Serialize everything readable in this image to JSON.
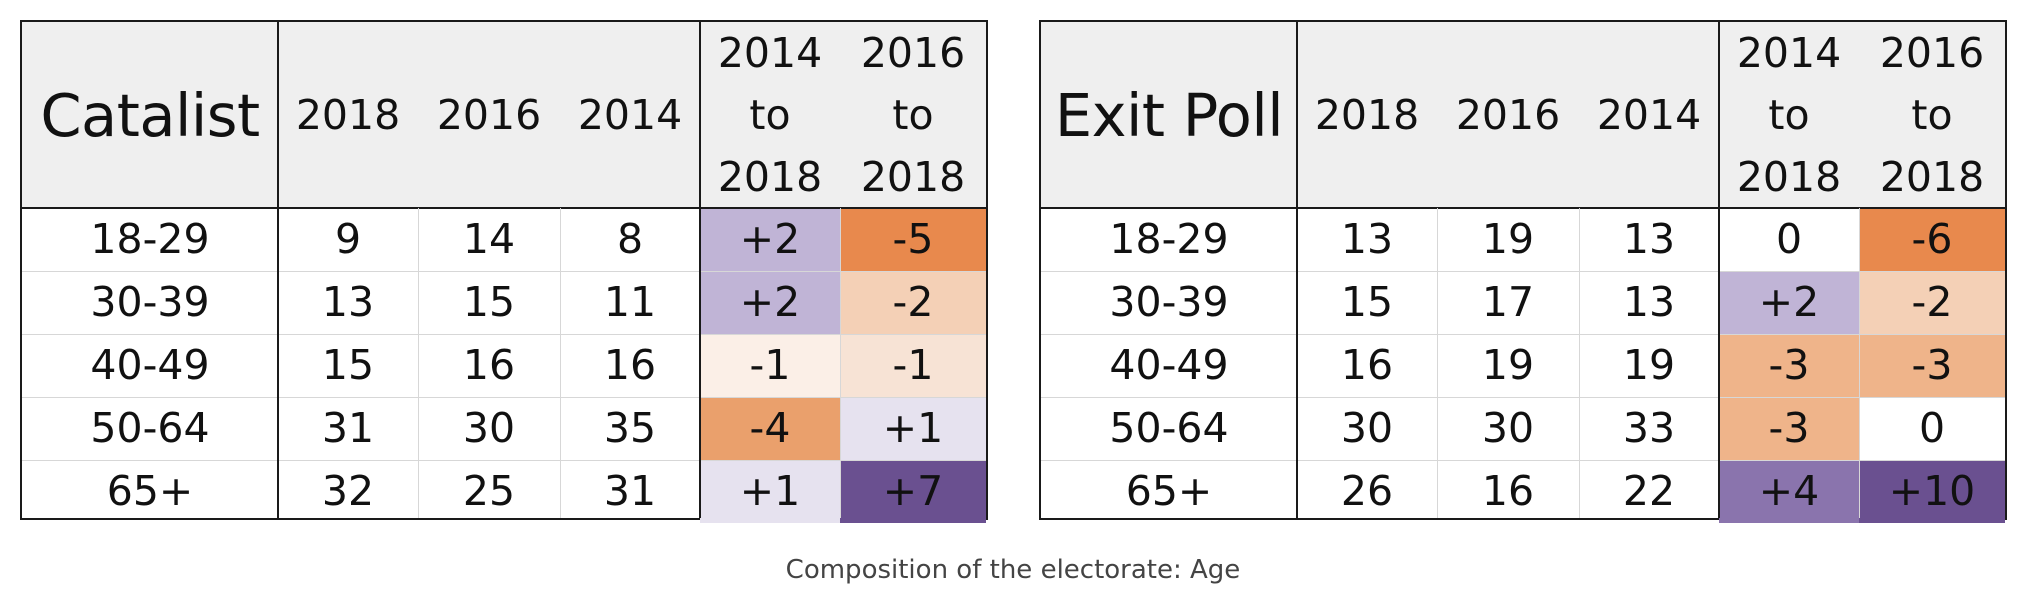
{
  "caption": "Composition of the electorate: Age",
  "tables": [
    {
      "title": "Catalist",
      "years": [
        "2018",
        "2016",
        "2014"
      ],
      "change_headers": [
        {
          "top": "2014",
          "mid": "to",
          "bottom": "2018"
        },
        {
          "top": "2016",
          "mid": "to",
          "bottom": "2018"
        }
      ],
      "rows": [
        {
          "age": "18-29",
          "v2018": "9",
          "v2016": "14",
          "v2014": "8",
          "c1": "+2",
          "c1_color": "#c0b4d6",
          "c2": "-5",
          "c2_color": "#e8894d"
        },
        {
          "age": "30-39",
          "v2018": "13",
          "v2016": "15",
          "v2014": "11",
          "c1": "+2",
          "c1_color": "#c0b4d6",
          "c2": "-2",
          "c2_color": "#f4d0b6"
        },
        {
          "age": "40-49",
          "v2018": "15",
          "v2016": "16",
          "v2014": "16",
          "c1": "-1",
          "c1_color": "#fbefe7",
          "c2": "-1",
          "c2_color": "#f7e3d5"
        },
        {
          "age": "50-64",
          "v2018": "31",
          "v2016": "30",
          "v2014": "35",
          "c1": "-4",
          "c1_color": "#eaa06c",
          "c2": "+1",
          "c2_color": "#e6e2ef"
        },
        {
          "age": "65+",
          "v2018": "32",
          "v2016": "25",
          "v2014": "31",
          "c1": "+1",
          "c1_color": "#e6e2ef",
          "c2": "+7",
          "c2_color": "#6a5090"
        }
      ]
    },
    {
      "title": "Exit Poll",
      "years": [
        "2018",
        "2016",
        "2014"
      ],
      "change_headers": [
        {
          "top": "2014",
          "mid": "to",
          "bottom": "2018"
        },
        {
          "top": "2016",
          "mid": "to",
          "bottom": "2018"
        }
      ],
      "rows": [
        {
          "age": "18-29",
          "v2018": "13",
          "v2016": "19",
          "v2014": "13",
          "c1": "0",
          "c1_color": "#ffffff",
          "c2": "-6",
          "c2_color": "#e8894d"
        },
        {
          "age": "30-39",
          "v2018": "15",
          "v2016": "17",
          "v2014": "13",
          "c1": "+2",
          "c1_color": "#c0b4d6",
          "c2": "-2",
          "c2_color": "#f4d0b6"
        },
        {
          "age": "40-49",
          "v2018": "16",
          "v2016": "19",
          "v2014": "19",
          "c1": "-3",
          "c1_color": "#efb48a",
          "c2": "-3",
          "c2_color": "#efb48a"
        },
        {
          "age": "50-64",
          "v2018": "30",
          "v2016": "30",
          "v2014": "33",
          "c1": "-3",
          "c1_color": "#efb48a",
          "c2": "0",
          "c2_color": "#ffffff"
        },
        {
          "age": "65+",
          "v2018": "26",
          "v2016": "16",
          "v2014": "22",
          "c1": "+4",
          "c1_color": "#8a74ad",
          "c2": "+10",
          "c2_color": "#6a5090"
        }
      ]
    }
  ]
}
